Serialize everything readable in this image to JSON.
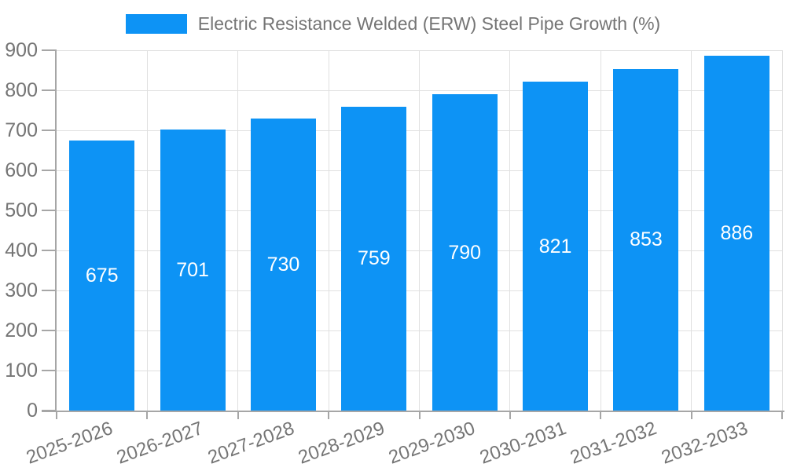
{
  "chart_data": {
    "type": "bar",
    "title": "Electric Resistance Welded (ERW) Steel Pipe Growth (%)",
    "categories": [
      "2025-2026",
      "2026-2027",
      "2027-2028",
      "2028-2029",
      "2029-2030",
      "2030-2031",
      "2031-2032",
      "2032-2033"
    ],
    "values": [
      675,
      701,
      730,
      759,
      790,
      821,
      853,
      886
    ],
    "value_labels": [
      "675",
      "701",
      "730",
      "759",
      "790",
      "821",
      "853",
      "886"
    ],
    "xlabel": "",
    "ylabel": "",
    "ylim": [
      0,
      900
    ],
    "yticks": [
      0,
      100,
      200,
      300,
      400,
      500,
      600,
      700,
      800,
      900
    ],
    "grid": true,
    "legend_position": "top-center",
    "colors": {
      "bar": "#0d93f5",
      "bar_value_text": "#ffffff",
      "grid": "#e0e0e0",
      "axis": "#a6a6a6",
      "tick_text": "#757575",
      "legend_text": "#757575",
      "background": "#ffffff"
    }
  }
}
